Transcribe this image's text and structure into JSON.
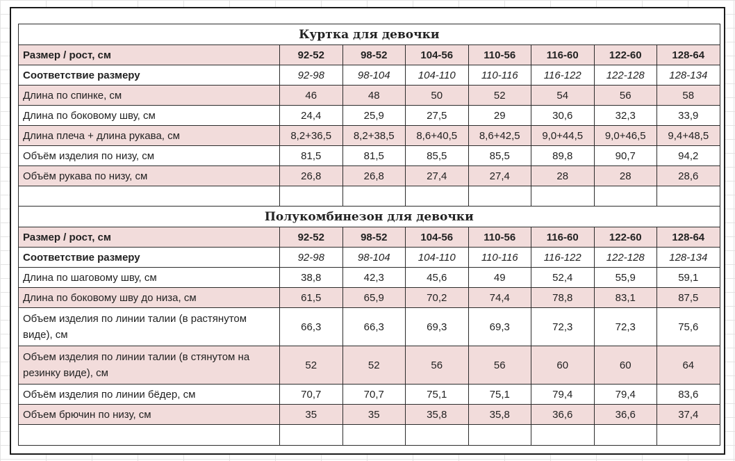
{
  "jacket": {
    "title": "Куртка для девочки",
    "rows": [
      {
        "label": "Размер / рост, см",
        "values": [
          "92-52",
          "98-52",
          "104-56",
          "110-56",
          "116-60",
          "122-60",
          "128-64"
        ],
        "style": "header pink"
      },
      {
        "label": "Соответствие размеру",
        "values": [
          "92-98",
          "98-104",
          "104-110",
          "110-116",
          "116-122",
          "122-128",
          "128-134"
        ],
        "style": "match"
      },
      {
        "label": "Длина по спинке, см",
        "values": [
          "46",
          "48",
          "50",
          "52",
          "54",
          "56",
          "58"
        ],
        "style": "pink"
      },
      {
        "label": "Длина по боковому шву, см",
        "values": [
          "24,4",
          "25,9",
          "27,5",
          "29",
          "30,6",
          "32,3",
          "33,9"
        ],
        "style": ""
      },
      {
        "label": "Длина плеча + длина рукава, см",
        "values": [
          "8,2+36,5",
          "8,2+38,5",
          "8,6+40,5",
          "8,6+42,5",
          "9,0+44,5",
          "9,0+46,5",
          "9,4+48,5"
        ],
        "style": "pink"
      },
      {
        "label": "Объём изделия по низу, см",
        "values": [
          "81,5",
          "81,5",
          "85,5",
          "85,5",
          "89,8",
          "90,7",
          "94,2"
        ],
        "style": ""
      },
      {
        "label": "Объём рукава по низу, см",
        "values": [
          "26,8",
          "26,8",
          "27,4",
          "27,4",
          "28",
          "28",
          "28,6"
        ],
        "style": "pink"
      }
    ]
  },
  "overalls": {
    "title": "Полукомбинезон для девочки",
    "rows": [
      {
        "label": "Размер / рост, см",
        "values": [
          "92-52",
          "98-52",
          "104-56",
          "110-56",
          "116-60",
          "122-60",
          "128-64"
        ],
        "style": "header pink"
      },
      {
        "label": "Соответствие размеру",
        "values": [
          "92-98",
          "98-104",
          "104-110",
          "110-116",
          "116-122",
          "122-128",
          "128-134"
        ],
        "style": "match"
      },
      {
        "label": "Длина по шаговому шву, см",
        "values": [
          "38,8",
          "42,3",
          "45,6",
          "49",
          "52,4",
          "55,9",
          "59,1"
        ],
        "style": ""
      },
      {
        "label": "Длина по боковому шву до низа, см",
        "values": [
          "61,5",
          "65,9",
          "70,2",
          "74,4",
          "78,8",
          "83,1",
          "87,5"
        ],
        "style": "pink"
      },
      {
        "label": "Объем изделия по линии талии (в растянутом виде), см",
        "values": [
          "66,3",
          "66,3",
          "69,3",
          "69,3",
          "72,3",
          "72,3",
          "75,6"
        ],
        "style": "tall"
      },
      {
        "label": "Объем изделия по линии талии (в стянутом на резинку виде), см",
        "values": [
          "52",
          "52",
          "56",
          "56",
          "60",
          "60",
          "64"
        ],
        "style": "tall pink"
      },
      {
        "label": "Объём изделия по линии бёдер, см",
        "values": [
          "70,7",
          "70,7",
          "75,1",
          "75,1",
          "79,4",
          "79,4",
          "83,6"
        ],
        "style": ""
      },
      {
        "label": "Объем брючин по низу, см",
        "values": [
          "35",
          "35",
          "35,8",
          "35,8",
          "36,6",
          "36,6",
          "37,4"
        ],
        "style": "pink"
      }
    ]
  }
}
